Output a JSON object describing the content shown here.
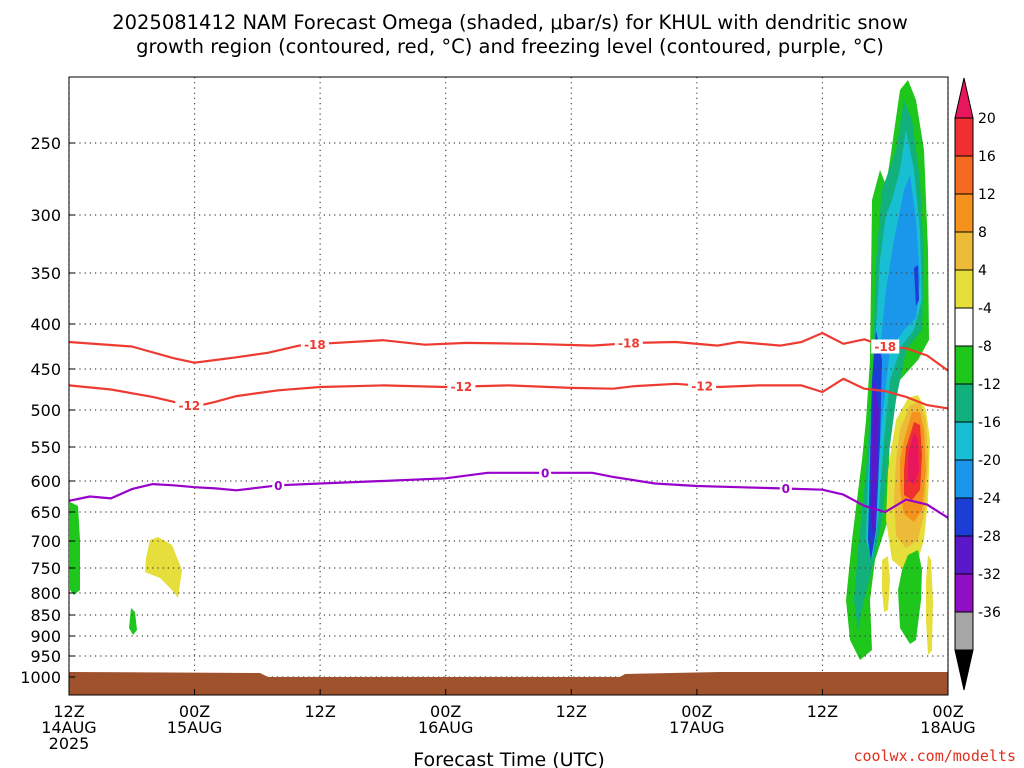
{
  "title_line1": "2025081412 NAM Forecast Omega (shaded, μbar/s) for KHUL with dendritic snow",
  "title_line2": "growth region (contoured, red, °C) and freezing level (contoured, purple, °C)",
  "xlabel": "Forecast Time (UTC)",
  "credit": "coolwx.com/modelts",
  "colors": {
    "dgz_contour": "#ee3b32",
    "freezing_contour": "#9a00cc",
    "ground": "#a0522d",
    "grid": "#444444"
  },
  "chart_data": {
    "type": "heatmap",
    "x_range_hours": [
      0,
      84
    ],
    "y_scale": "pressure (hPa), log-like, decreasing upward",
    "y_ticks": [
      250,
      300,
      350,
      400,
      450,
      500,
      550,
      600,
      650,
      700,
      750,
      800,
      850,
      900,
      950,
      1000
    ],
    "x_ticks": [
      {
        "hour": 0,
        "label1": "12Z",
        "label2": "14AUG",
        "label3": "2025"
      },
      {
        "hour": 12,
        "label1": "00Z",
        "label2": "15AUG",
        "label3": ""
      },
      {
        "hour": 24,
        "label1": "12Z",
        "label2": "",
        "label3": ""
      },
      {
        "hour": 36,
        "label1": "00Z",
        "label2": "16AUG",
        "label3": ""
      },
      {
        "hour": 48,
        "label1": "12Z",
        "label2": "",
        "label3": ""
      },
      {
        "hour": 60,
        "label1": "00Z",
        "label2": "17AUG",
        "label3": ""
      },
      {
        "hour": 72,
        "label1": "12Z",
        "label2": "",
        "label3": ""
      },
      {
        "hour": 84,
        "label1": "00Z",
        "label2": "18AUG",
        "label3": ""
      }
    ],
    "grid": true,
    "colorbar": {
      "labels": [
        "20",
        "16",
        "12",
        "8",
        "4",
        "-4",
        "-8",
        "-12",
        "-16",
        "-20",
        "-24",
        "-28",
        "-32",
        "-36"
      ],
      "colors": [
        "#e8175d",
        "#f03030",
        "#f46a20",
        "#f5921e",
        "#eebb38",
        "#e6de3a",
        "#ffffff",
        "#1fc61c",
        "#12b07d",
        "#18bfd2",
        "#1a96ea",
        "#1c3ed6",
        "#5a18c8",
        "#8f10c4",
        "#a6a6a6",
        "#000000"
      ]
    },
    "contours": [
      {
        "name": "-18",
        "color": "#ee3b32",
        "x": [
          0,
          6,
          10,
          12,
          14,
          16,
          19,
          22,
          24,
          30,
          34,
          38,
          44,
          50,
          54,
          58,
          62,
          64,
          68,
          70,
          72,
          74,
          76,
          78,
          80,
          82,
          84
        ],
        "y": [
          420,
          425,
          438,
          443,
          440,
          437,
          432,
          424,
          422,
          418,
          423,
          421,
          422,
          424,
          421,
          420,
          424,
          420,
          424,
          420,
          410,
          422,
          417,
          425,
          427,
          435,
          452
        ],
        "labels": [
          {
            "x": 23.5,
            "text": "-18"
          },
          {
            "x": 53.5,
            "text": "-18"
          },
          {
            "x": 78,
            "text": "-18"
          }
        ]
      },
      {
        "name": "-12",
        "color": "#ee3b32",
        "x": [
          0,
          4,
          8,
          12,
          14,
          16,
          20,
          24,
          30,
          36,
          42,
          48,
          52,
          54,
          58,
          62,
          66,
          70,
          72,
          74,
          76,
          78,
          80,
          82,
          84
        ],
        "y": [
          470,
          475,
          484,
          496,
          490,
          483,
          476,
          472,
          470,
          472,
          470,
          473,
          474,
          471,
          468,
          472,
          470,
          470,
          478,
          462,
          474,
          477,
          484,
          494,
          498
        ],
        "labels": [
          {
            "x": 11.5,
            "text": "-12"
          },
          {
            "x": 37.5,
            "text": "-12"
          },
          {
            "x": 60.5,
            "text": "-12"
          }
        ]
      },
      {
        "name": "0",
        "color": "#9a00cc",
        "x": [
          0,
          2,
          4,
          6,
          8,
          10,
          12,
          14,
          16,
          20,
          24,
          30,
          36,
          40,
          44,
          48,
          50,
          52,
          56,
          60,
          64,
          68,
          72,
          74,
          76,
          78,
          80,
          82,
          84
        ],
        "y": [
          632,
          625,
          628,
          613,
          605,
          607,
          610,
          612,
          615,
          607,
          604,
          600,
          596,
          588,
          588,
          588,
          588,
          594,
          604,
          608,
          610,
          612,
          614,
          622,
          640,
          650,
          630,
          638,
          660
        ],
        "labels": [
          {
            "x": 20,
            "text": "0"
          },
          {
            "x": 45.5,
            "text": "0"
          },
          {
            "x": 68.5,
            "text": "0"
          }
        ]
      }
    ]
  }
}
